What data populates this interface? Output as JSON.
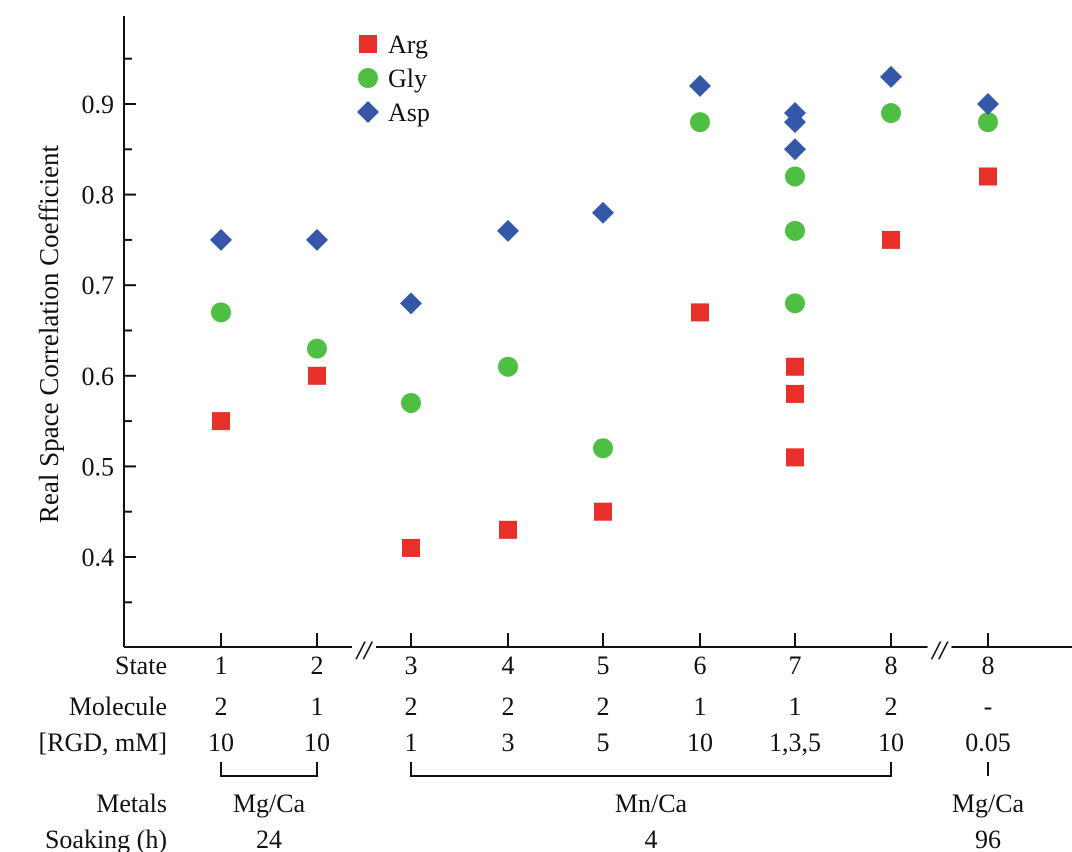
{
  "chart_data": {
    "type": "scatter",
    "ylabel": "Real Space Correlation Coefficient",
    "ylim": [
      0.3,
      1.0
    ],
    "yticks": [
      0.4,
      0.5,
      0.6,
      0.7,
      0.8,
      0.9
    ],
    "ytick_labels": [
      "0.4",
      "0.5",
      "0.6",
      "0.7",
      "0.8",
      "0.9"
    ],
    "x_break_symbol": "//",
    "legend_position": "top-left",
    "columns": [
      {
        "state": "1",
        "molecule": "2",
        "rgd": "10"
      },
      {
        "state": "2",
        "molecule": "1",
        "rgd": "10"
      },
      {
        "state": "3",
        "molecule": "2",
        "rgd": "1"
      },
      {
        "state": "4",
        "molecule": "2",
        "rgd": "3"
      },
      {
        "state": "5",
        "molecule": "2",
        "rgd": "5"
      },
      {
        "state": "6",
        "molecule": "1",
        "rgd": "10"
      },
      {
        "state": "7",
        "molecule": "1",
        "rgd": "1,3,5"
      },
      {
        "state": "8",
        "molecule": "2",
        "rgd": "10"
      },
      {
        "state": "8",
        "molecule": "-",
        "rgd": "0.05"
      }
    ],
    "row_labels": {
      "state": "State",
      "molecule": "Molecule",
      "rgd": "[RGD, mM]",
      "metals": "Metals",
      "soaking": "Soaking (h)"
    },
    "groups": [
      {
        "metals": "Mg/Ca",
        "soaking": "24",
        "columns": [
          1,
          2
        ]
      },
      {
        "metals": "Mn/Ca",
        "soaking": "4",
        "columns": [
          3,
          8
        ]
      },
      {
        "metals": "Mg/Ca",
        "soaking": "96",
        "columns": [
          9,
          9
        ]
      }
    ],
    "series": [
      {
        "name": "Arg",
        "marker": "square",
        "color": "#e8302a",
        "points": [
          [
            1,
            0.55
          ],
          [
            2,
            0.6
          ],
          [
            3,
            0.41
          ],
          [
            4,
            0.43
          ],
          [
            5,
            0.45
          ],
          [
            6,
            0.67
          ],
          [
            7,
            0.61
          ],
          [
            7,
            0.58
          ],
          [
            7,
            0.51
          ],
          [
            8,
            0.75
          ],
          [
            9,
            0.82
          ]
        ]
      },
      {
        "name": "Gly",
        "marker": "circle",
        "color": "#4fbf44",
        "points": [
          [
            1,
            0.67
          ],
          [
            2,
            0.63
          ],
          [
            3,
            0.57
          ],
          [
            4,
            0.61
          ],
          [
            5,
            0.52
          ],
          [
            6,
            0.88
          ],
          [
            7,
            0.82
          ],
          [
            7,
            0.76
          ],
          [
            7,
            0.68
          ],
          [
            8,
            0.89
          ],
          [
            9,
            0.88
          ]
        ]
      },
      {
        "name": "Asp",
        "marker": "diamond",
        "color": "#3457a8",
        "points": [
          [
            1,
            0.75
          ],
          [
            2,
            0.75
          ],
          [
            3,
            0.68
          ],
          [
            4,
            0.76
          ],
          [
            5,
            0.78
          ],
          [
            6,
            0.92
          ],
          [
            7,
            0.89
          ],
          [
            7,
            0.88
          ],
          [
            7,
            0.85
          ],
          [
            8,
            0.93
          ],
          [
            9,
            0.9
          ]
        ]
      }
    ]
  }
}
